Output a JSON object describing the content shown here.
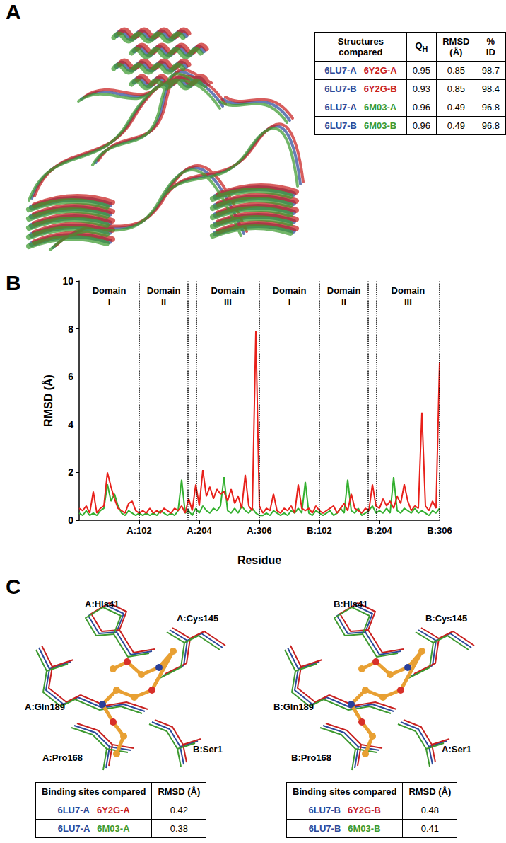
{
  "panel_labels": [
    "A",
    "B",
    "C"
  ],
  "panel_a": {
    "table": {
      "header": [
        "Structures compared",
        {
          "main": "Q",
          "sub": "H"
        },
        "RMSD (Å)",
        "% ID"
      ],
      "rows": [
        {
          "structures": [
            {
              "text": "6LU7-A",
              "color": "#2c4a9a"
            },
            {
              "text": "6Y2G-A",
              "color": "#c8201f"
            }
          ],
          "values": [
            0.95,
            0.85,
            98.7
          ]
        },
        {
          "structures": [
            {
              "text": "6LU7-B",
              "color": "#2c4a9a"
            },
            {
              "text": "6Y2G-B",
              "color": "#c8201f"
            }
          ],
          "values": [
            0.93,
            0.85,
            98.4
          ]
        },
        {
          "structures": [
            {
              "text": "6LU7-A",
              "color": "#2c4a9a"
            },
            {
              "text": "6M03-A",
              "color": "#3d9a2f"
            }
          ],
          "values": [
            0.96,
            0.49,
            96.8
          ]
        },
        {
          "structures": [
            {
              "text": "6LU7-B",
              "color": "#2c4a9a"
            },
            {
              "text": "6M03-B",
              "color": "#3d9a2f"
            }
          ],
          "values": [
            0.96,
            0.49,
            96.8
          ]
        }
      ]
    }
  },
  "chart_data": {
    "type": "line",
    "x_label": "Residue",
    "y_label": "RMSD (Å)",
    "xlim": [
      0,
      612
    ],
    "xticks": [
      {
        "value": 102,
        "label": "A:102"
      },
      {
        "value": 204,
        "label": "A:204"
      },
      {
        "value": 306,
        "label": "A:306"
      },
      {
        "value": 408,
        "label": "B:102"
      },
      {
        "value": 510,
        "label": "B:204"
      },
      {
        "value": 612,
        "label": "B:306"
      }
    ],
    "ylim": [
      0,
      10
    ],
    "yticks": [
      0,
      2,
      4,
      6,
      8,
      10
    ],
    "grid": false,
    "domains": [
      {
        "label": "Domain I",
        "start": 0,
        "end": 102
      },
      {
        "label": "Domain II",
        "start": 102,
        "end": 185
      },
      {
        "label": "Domain III",
        "start": 199,
        "end": 306
      },
      {
        "label": "Domain I",
        "start": 306,
        "end": 408
      },
      {
        "label": "Domain II",
        "start": 408,
        "end": 491
      },
      {
        "label": "Domain III",
        "start": 505,
        "end": 612
      }
    ],
    "x": [
      0,
      6,
      12,
      18,
      24,
      30,
      36,
      42,
      48,
      54,
      60,
      66,
      72,
      78,
      84,
      90,
      96,
      102,
      108,
      114,
      120,
      126,
      132,
      138,
      144,
      150,
      156,
      162,
      168,
      174,
      180,
      186,
      192,
      198,
      204,
      210,
      216,
      222,
      228,
      234,
      240,
      246,
      252,
      258,
      264,
      270,
      276,
      282,
      288,
      294,
      300,
      306,
      312,
      318,
      324,
      330,
      336,
      342,
      348,
      354,
      360,
      366,
      372,
      378,
      384,
      390,
      396,
      402,
      408,
      414,
      420,
      426,
      432,
      438,
      444,
      450,
      456,
      462,
      468,
      474,
      480,
      486,
      492,
      498,
      504,
      510,
      516,
      522,
      528,
      534,
      540,
      546,
      552,
      558,
      564,
      570,
      576,
      582,
      588,
      594,
      600,
      606,
      612
    ],
    "series": [
      {
        "color": "#33b02f",
        "values": [
          0.3,
          0.2,
          0.4,
          0.2,
          0.3,
          0.2,
          0.4,
          0.5,
          1.5,
          0.8,
          1.1,
          0.6,
          0.3,
          0.2,
          0.4,
          0.3,
          0.2,
          0.3,
          0.2,
          0.3,
          0.2,
          0.3,
          0.2,
          0.4,
          0.3,
          0.2,
          0.3,
          0.2,
          0.4,
          1.7,
          0.3,
          0.4,
          0.2,
          0.5,
          0.3,
          0.6,
          0.4,
          0.3,
          0.5,
          0.4,
          0.6,
          1.8,
          0.4,
          0.3,
          0.5,
          0.3,
          0.6,
          0.4,
          0.3,
          0.5,
          0.3,
          0.2,
          0.2,
          0.3,
          0.2,
          0.4,
          0.3,
          0.2,
          0.3,
          0.2,
          0.4,
          0.3,
          0.5,
          0.3,
          1.6,
          0.3,
          0.2,
          0.4,
          0.3,
          0.2,
          0.3,
          0.4,
          0.2,
          0.3,
          0.5,
          0.3,
          1.7,
          0.4,
          0.3,
          0.5,
          0.2,
          0.3,
          0.4,
          0.6,
          0.3,
          0.4,
          0.3,
          0.5,
          0.3,
          1.8,
          0.4,
          0.3,
          0.5,
          0.4,
          0.3,
          0.5,
          0.3,
          0.4,
          0.3,
          0.2,
          0.4,
          0.3,
          0.5
        ]
      },
      {
        "color": "#e8201a",
        "values": [
          0.5,
          0.4,
          0.6,
          0.3,
          1.2,
          0.3,
          0.5,
          0.6,
          2.0,
          1.4,
          0.9,
          0.5,
          0.4,
          0.3,
          0.7,
          0.8,
          0.4,
          0.3,
          0.4,
          0.3,
          0.5,
          0.3,
          0.4,
          0.3,
          0.5,
          0.4,
          0.3,
          0.5,
          0.4,
          0.6,
          0.3,
          0.9,
          0.4,
          1.5,
          0.6,
          2.1,
          1.0,
          1.4,
          0.9,
          1.3,
          1.1,
          1.2,
          0.8,
          1.3,
          0.7,
          1.0,
          0.5,
          1.9,
          0.6,
          0.4,
          7.9,
          0.6,
          0.3,
          0.5,
          0.4,
          1.1,
          0.4,
          0.3,
          0.5,
          0.4,
          0.6,
          0.3,
          1.5,
          0.5,
          0.4,
          0.5,
          0.3,
          0.6,
          0.4,
          0.3,
          0.4,
          0.5,
          0.6,
          0.3,
          0.5,
          0.7,
          0.4,
          1.1,
          0.5,
          0.4,
          0.3,
          0.5,
          0.4,
          1.5,
          0.6,
          0.5,
          0.9,
          0.6,
          0.8,
          0.5,
          1.0,
          0.7,
          1.5,
          0.8,
          0.4,
          0.6,
          0.5,
          4.5,
          0.6,
          0.4,
          0.8,
          0.5,
          6.6
        ]
      }
    ]
  },
  "panel_c": {
    "images": [
      {
        "labels": [
          "A:His41",
          "A:Cys145",
          "A:Gln189",
          "A:Pro168",
          "B:Ser1"
        ]
      },
      {
        "labels": [
          "B:His41",
          "B:Cys145",
          "B:Gln189",
          "B:Pro168",
          "A:Ser1"
        ]
      }
    ],
    "tables": [
      {
        "header": [
          "Binding sites compared",
          "RMSD (Å)"
        ],
        "rows": [
          {
            "structures": [
              {
                "text": "6LU7-A",
                "color": "#2c4a9a"
              },
              {
                "text": "6Y2G-A",
                "color": "#c8201f"
              }
            ],
            "values": [
              0.42
            ]
          },
          {
            "structures": [
              {
                "text": "6LU7-A",
                "color": "#2c4a9a"
              },
              {
                "text": "6M03-A",
                "color": "#3d9a2f"
              }
            ],
            "values": [
              0.38
            ]
          }
        ]
      },
      {
        "header": [
          "Binding sites compared",
          "RMSD (Å)"
        ],
        "rows": [
          {
            "structures": [
              {
                "text": "6LU7-B",
                "color": "#2c4a9a"
              },
              {
                "text": "6Y2G-B",
                "color": "#c8201f"
              }
            ],
            "values": [
              0.48
            ]
          },
          {
            "structures": [
              {
                "text": "6LU7-B",
                "color": "#2c4a9a"
              },
              {
                "text": "6M03-B",
                "color": "#3d9a2f"
              }
            ],
            "values": [
              0.41
            ]
          }
        ]
      }
    ]
  }
}
